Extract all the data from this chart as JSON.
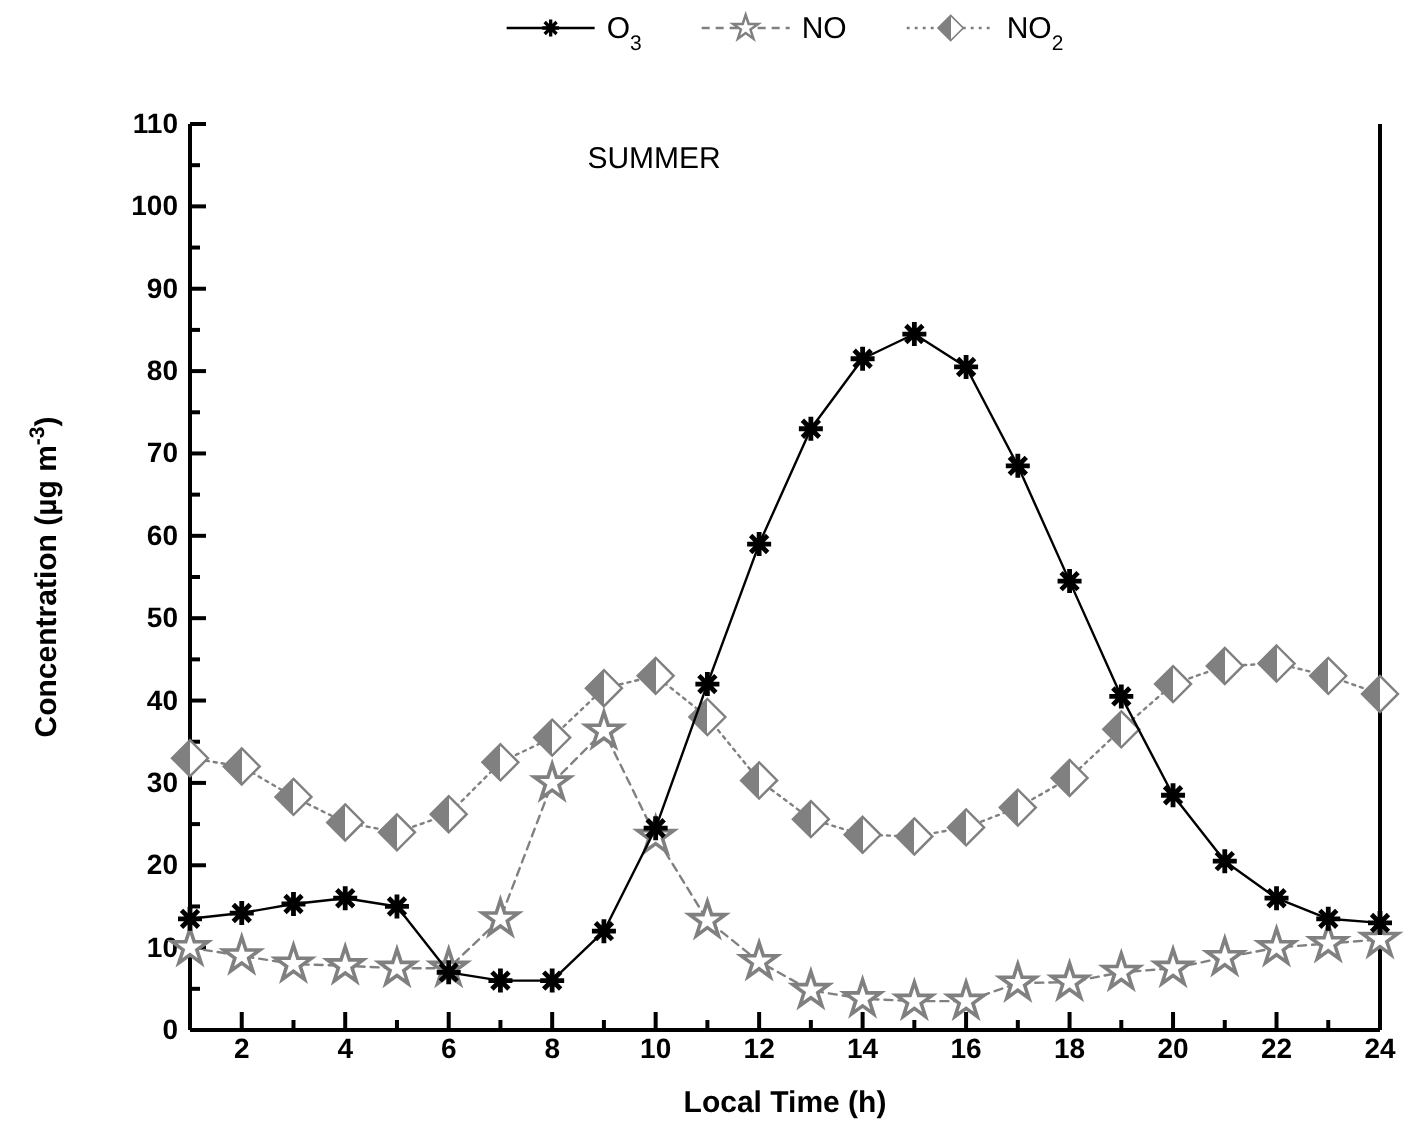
{
  "chart_data": {
    "type": "line",
    "title": "SUMMER",
    "xlabel": "Local Time (h)",
    "ylabel": "Concentration (µg m$^{-3}$)",
    "x": [
      1,
      2,
      3,
      4,
      5,
      6,
      7,
      8,
      9,
      10,
      11,
      12,
      13,
      14,
      15,
      16,
      17,
      18,
      19,
      20,
      21,
      22,
      23,
      24
    ],
    "xlim": [
      1,
      24
    ],
    "xticks": [
      2,
      4,
      6,
      8,
      10,
      12,
      14,
      16,
      18,
      20,
      22,
      24
    ],
    "ylim": [
      0,
      110
    ],
    "yticks": [
      0,
      10,
      20,
      30,
      40,
      50,
      60,
      70,
      80,
      90,
      100,
      110
    ],
    "grid": false,
    "legend": "top",
    "series": [
      {
        "name": "O$_{3}$",
        "color": "#000000",
        "marker": "cross",
        "line_style": "solid",
        "values": [
          13.5,
          14.2,
          15.3,
          16,
          15,
          7,
          6,
          6,
          12,
          24.5,
          42,
          59,
          73,
          81.5,
          84.5,
          80.5,
          68.5,
          54.5,
          40.5,
          28.5,
          20.5,
          16,
          13.5,
          13
        ]
      },
      {
        "name": "NO",
        "color": "#808080",
        "marker": "star",
        "line_style": "dashed",
        "values": [
          10,
          9,
          8,
          7.8,
          7.5,
          7.5,
          13.5,
          30,
          36.3,
          23.5,
          13.3,
          8.3,
          4.8,
          3.8,
          3.5,
          3.5,
          5.7,
          5.8,
          7,
          7.5,
          8.8,
          10,
          10.5,
          11
        ]
      },
      {
        "name": "NO$_{2}$",
        "color": "#808080",
        "marker": "diamond",
        "line_style": "dotted",
        "values": [
          33,
          32,
          28.3,
          25.2,
          24,
          26.2,
          32.5,
          35.5,
          41.5,
          43,
          38,
          30.3,
          25.6,
          23.7,
          23.5,
          24.6,
          27,
          30.6,
          36.5,
          42,
          44.2,
          44.5,
          43,
          40.8
        ]
      }
    ]
  }
}
